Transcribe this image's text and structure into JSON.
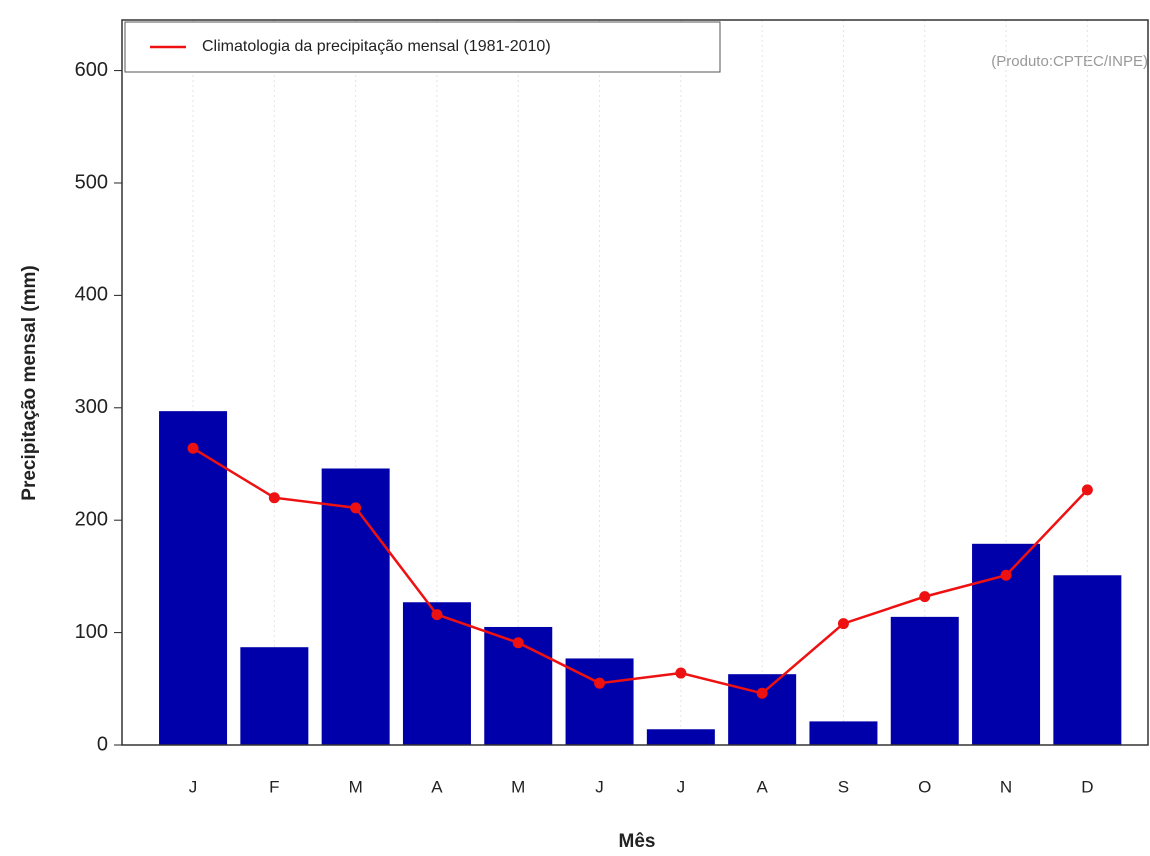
{
  "chart_data": {
    "type": "bar_line",
    "ylabel": "Precipitação mensal (mm)",
    "xlabel": "Mês",
    "annotation": "(Produto:CPTEC/INPE)",
    "categories": [
      "J",
      "F",
      "M",
      "A",
      "M",
      "J",
      "J",
      "A",
      "S",
      "O",
      "N",
      "D"
    ],
    "series": [
      {
        "type": "bar",
        "color": "#0000aa",
        "values": [
          297,
          87,
          246,
          127,
          105,
          77,
          14,
          63,
          21,
          114,
          179,
          151
        ]
      },
      {
        "type": "line",
        "name": "Climatologia da precipitação mensal (1981-2010)",
        "color": "#ee1111",
        "values": [
          264,
          220,
          211,
          116,
          91,
          55,
          64,
          46,
          108,
          132,
          151,
          227
        ]
      }
    ],
    "ylim": [
      0,
      645
    ],
    "yticks": [
      0,
      100,
      200,
      300,
      400,
      500,
      600
    ],
    "grid": true
  }
}
